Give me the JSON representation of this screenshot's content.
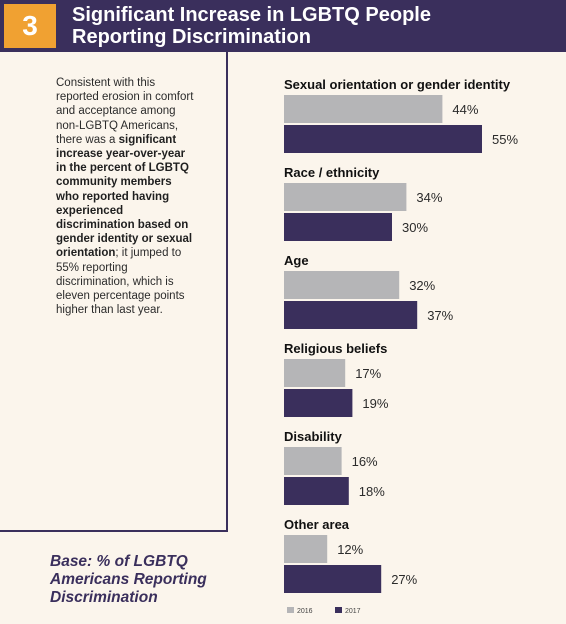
{
  "header": {
    "number": "3",
    "title_line1": "Significant Increase in LGBTQ People",
    "title_line2": "Reporting Discrimination"
  },
  "side_text": {
    "intro": "Consistent with this reported erosion in comfort and acceptance among non-LGBTQ Americans, there was a ",
    "bold": "significant increase year-over-year in the percent of LGBTQ community members who reported having experienced discrimination based on gender identity or sexual orientation",
    "outro": "; it jumped to 55% reporting discrimination, which is eleven percentage points higher than last year."
  },
  "base": {
    "line1": "Base: % of LGBTQ",
    "line2": "Americans Reporting",
    "line3": "Discrimination"
  },
  "colors": {
    "header_bg": "#3a2f5c",
    "number_box": "#f0a132",
    "background": "#fbf5ec",
    "bar_2016": "#b5b5b7",
    "bar_2017": "#3a2f5c"
  },
  "chart_data": {
    "type": "bar",
    "orientation": "horizontal",
    "categories": [
      "Sexual orientation or gender identity",
      "Race / ethnicity",
      "Age",
      "Religious beliefs",
      "Disability",
      "Other area"
    ],
    "series": [
      {
        "name": "2016",
        "values": [
          44,
          34,
          32,
          17,
          16,
          12
        ],
        "labels": [
          "44%",
          "34%",
          "32%",
          "17%",
          "16%",
          "12%"
        ]
      },
      {
        "name": "2017",
        "values": [
          55,
          30,
          37,
          19,
          18,
          27
        ],
        "labels": [
          "55%",
          "30%",
          "37%",
          "19%",
          "18%",
          "27%"
        ]
      }
    ],
    "legend_position": "bottom-left",
    "grid": false
  }
}
